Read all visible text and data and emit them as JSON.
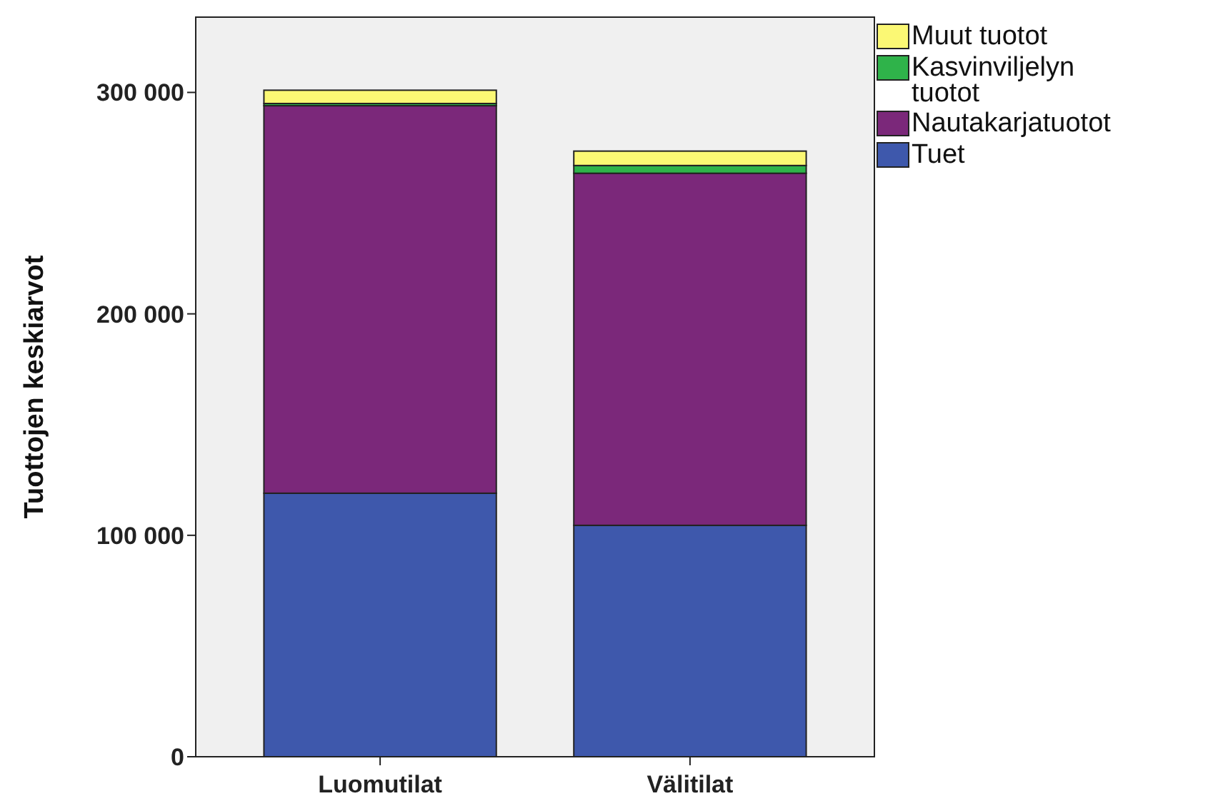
{
  "chart_data": {
    "type": "bar",
    "stacked": true,
    "ylabel": "Tuottojen keskiarvot",
    "categories": [
      "Luomutilat",
      "Välitilat"
    ],
    "series": [
      {
        "name": "Tuet",
        "color": "#3e58ac",
        "values": [
          119000,
          104500
        ]
      },
      {
        "name": "Nautakarjatuotot",
        "color": "#7b287a",
        "values": [
          175000,
          159000
        ]
      },
      {
        "name": "Kasvinviljelyn tuotot",
        "color": "#2fb34a",
        "values": [
          1000,
          3500
        ]
      },
      {
        "name": "Muut tuotot",
        "color": "#fbf874",
        "values": [
          6000,
          6500
        ]
      }
    ],
    "ylim": [
      0,
      334000
    ],
    "yticks": [
      0,
      {
        "value": 100000,
        "label": "100 000"
      },
      {
        "value": 200000,
        "label": "200 000"
      },
      {
        "value": 300000,
        "label": "300 000"
      }
    ],
    "grid": false,
    "legend": "top right"
  }
}
